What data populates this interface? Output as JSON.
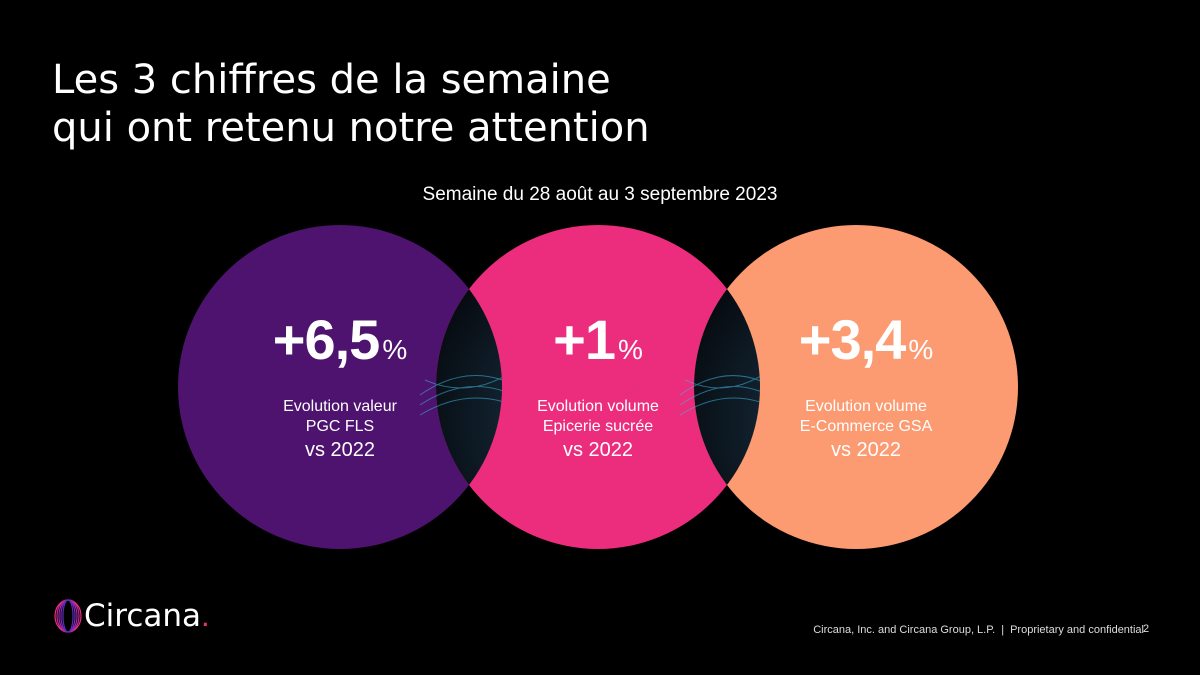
{
  "slide": {
    "title_line1": "Les 3 chiffres de la semaine",
    "title_line2": "qui ont retenu notre attention",
    "subtitle": "Semaine du 28 août au 3 septembre 2023"
  },
  "colors": {
    "purple": "#4d136e",
    "pink": "#ec2c7c",
    "salmon": "#fc9a72"
  },
  "figures": [
    {
      "value": "+6,5",
      "unit": "%",
      "line1": "Evolution valeur",
      "line2": "PGC FLS",
      "line3": "vs 2022"
    },
    {
      "value": "+1",
      "unit": "%",
      "line1": "Evolution volume",
      "line2": "Epicerie sucrée",
      "line3": "vs 2022"
    },
    {
      "value": "+3,4",
      "unit": "%",
      "line1": "Evolution volume",
      "line2": "E-Commerce GSA",
      "line3": "vs 2022"
    }
  ],
  "brand": {
    "name": "Circana",
    "dot": "."
  },
  "footer": {
    "legal": "Circana, Inc. and Circana Group, L.P.",
    "separator": "|",
    "confidential": "Proprietary and confidential",
    "page_number": "2"
  }
}
